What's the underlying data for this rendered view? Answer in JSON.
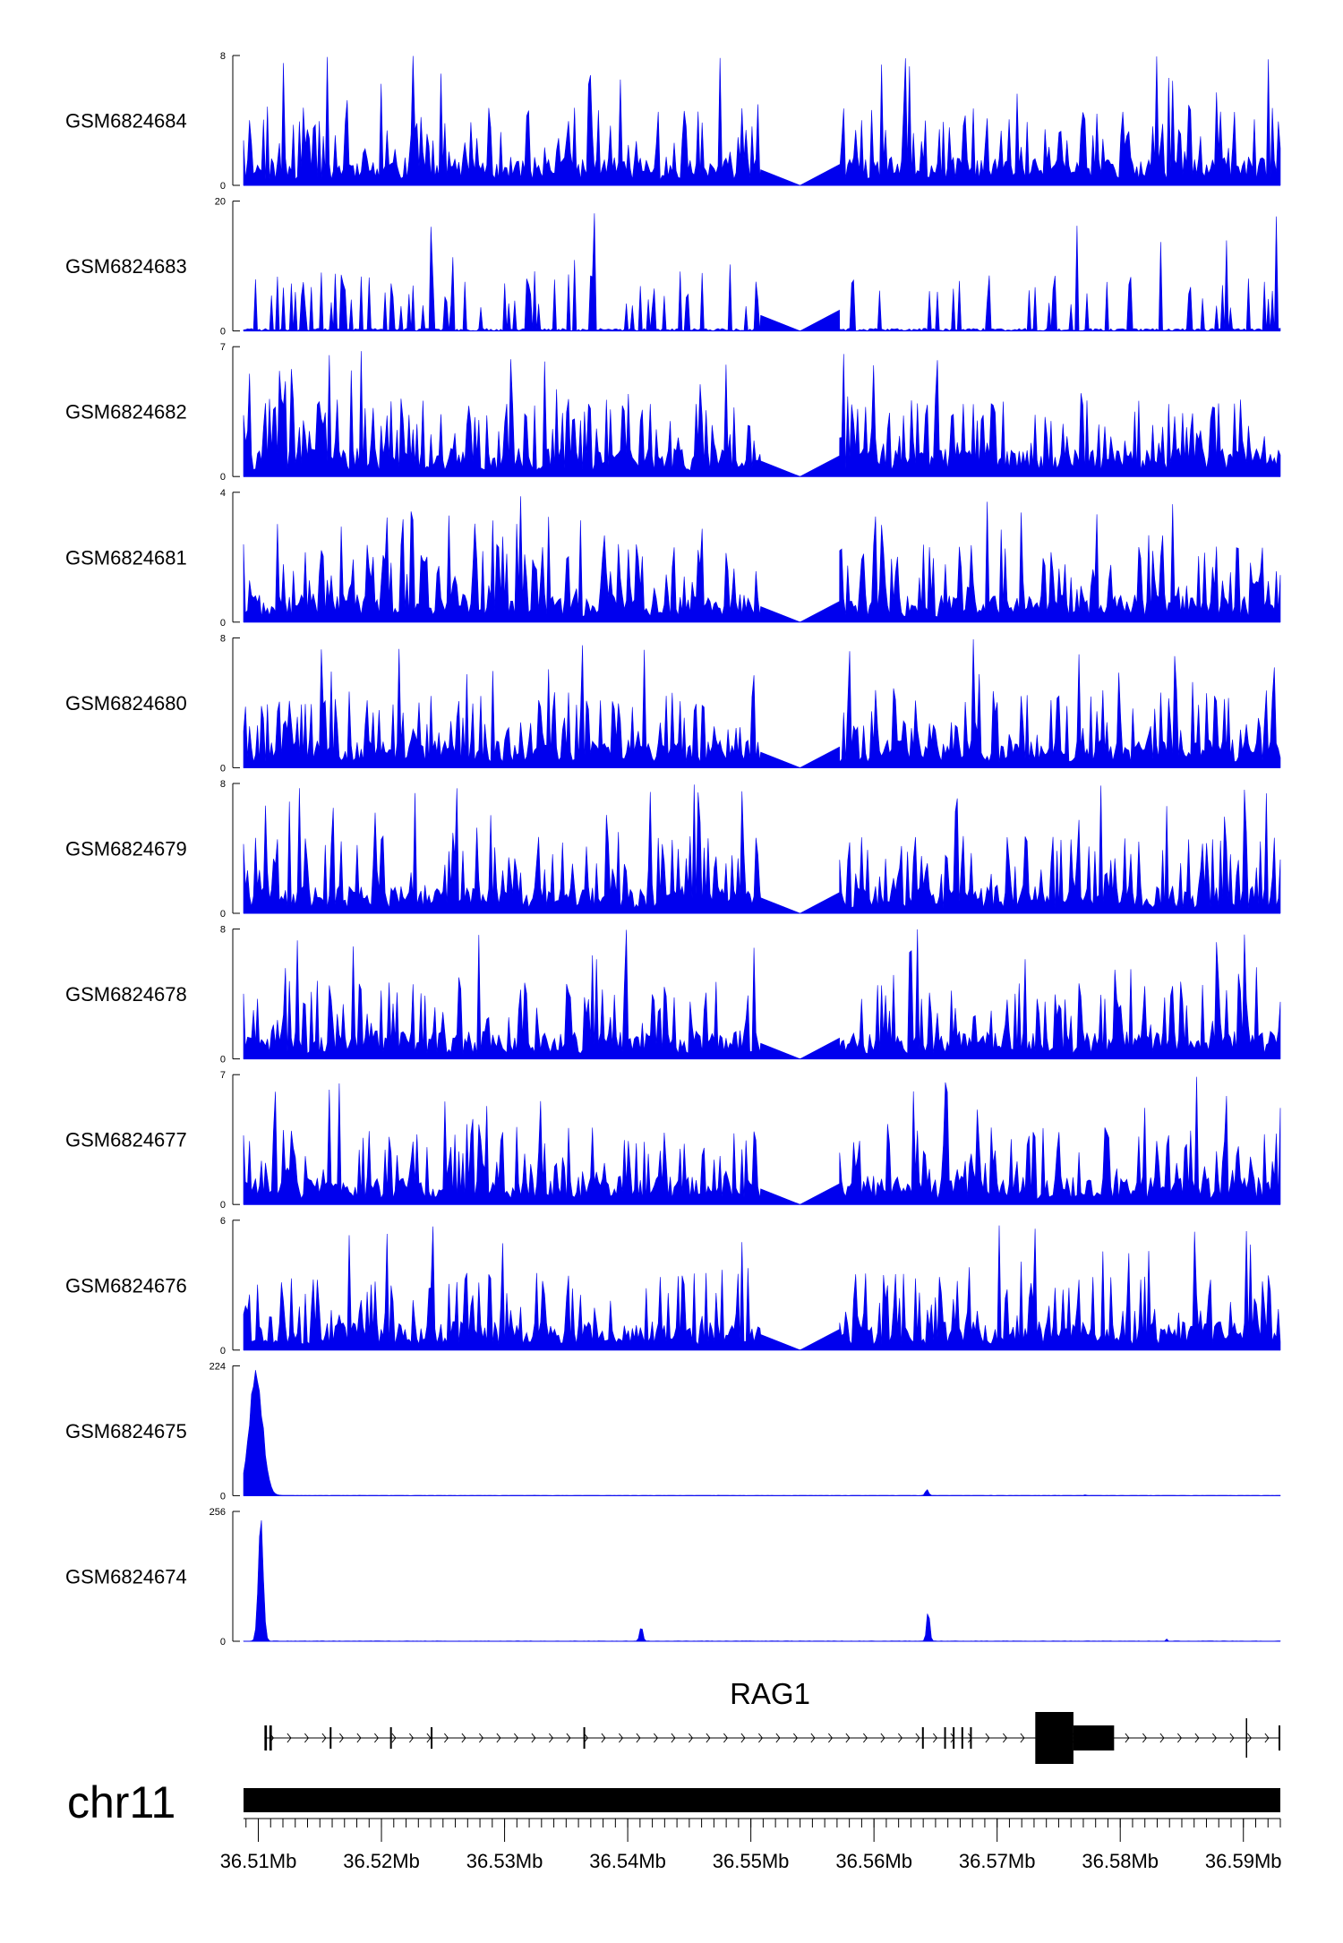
{
  "chart_data": {
    "type": "area",
    "chromosome": "chr11",
    "x_range_mb": [
      36.5088,
      36.593
    ],
    "gene": {
      "name": "RAG1",
      "start_mb": 36.5105,
      "end_mb": 36.593,
      "strand": "+",
      "exons_mb": [
        [
          36.5105,
          36.5107
        ],
        [
          36.5109,
          36.5111
        ],
        [
          36.5158,
          36.5159
        ],
        [
          36.5207,
          36.5208
        ],
        [
          36.524,
          36.5241
        ],
        [
          36.5364,
          36.5365
        ],
        [
          36.5639,
          36.564
        ],
        [
          36.5657,
          36.5658
        ],
        [
          36.5664,
          36.5665
        ],
        [
          36.5671,
          36.5672
        ],
        [
          36.5678,
          36.5679
        ]
      ],
      "cds_mb": [
        36.5731,
        36.5762
      ],
      "utr_mb": [
        36.5762,
        36.5795
      ],
      "tail_exon_mb": [
        36.5902,
        36.5903
      ]
    },
    "ticks": [
      "36.51Mb",
      "36.52Mb",
      "36.53Mb",
      "36.54Mb",
      "36.55Mb",
      "36.56Mb",
      "36.57Mb",
      "36.58Mb",
      "36.59Mb"
    ],
    "tick_values_mb": [
      36.51,
      36.52,
      36.53,
      36.54,
      36.55,
      36.56,
      36.57,
      36.58,
      36.59
    ],
    "gap_mb": [
      36.5508,
      36.5572
    ],
    "series_color": "#0000ee",
    "tracks": [
      {
        "name": "GSM6824684",
        "ymin": 0,
        "ymax": 8,
        "profile": "noise",
        "seed": 11,
        "mean": 0.22,
        "max": 8
      },
      {
        "name": "GSM6824683",
        "ymin": 0,
        "ymax": 20,
        "profile": "sparse",
        "seed": 23,
        "mean": 0.2,
        "max": 20
      },
      {
        "name": "GSM6824682",
        "ymin": 0,
        "ymax": 7,
        "profile": "noise",
        "seed": 37,
        "mean": 0.25,
        "max": 7
      },
      {
        "name": "GSM6824681",
        "ymin": 0,
        "ymax": 4,
        "profile": "noise",
        "seed": 41,
        "mean": 0.28,
        "max": 4
      },
      {
        "name": "GSM6824680",
        "ymin": 0,
        "ymax": 8,
        "profile": "noise",
        "seed": 53,
        "mean": 0.22,
        "max": 8
      },
      {
        "name": "GSM6824679",
        "ymin": 0,
        "ymax": 8,
        "profile": "noise",
        "seed": 61,
        "mean": 0.22,
        "max": 8
      },
      {
        "name": "GSM6824678",
        "ymin": 0,
        "ymax": 8,
        "profile": "noise",
        "seed": 71,
        "mean": 0.22,
        "max": 8
      },
      {
        "name": "GSM6824677",
        "ymin": 0,
        "ymax": 7,
        "profile": "noise",
        "seed": 83,
        "mean": 0.25,
        "max": 7
      },
      {
        "name": "GSM6824676",
        "ymin": 0,
        "ymax": 6,
        "profile": "noise",
        "seed": 97,
        "mean": 0.22,
        "max": 6
      },
      {
        "name": "GSM6824675",
        "ymin": 0,
        "ymax": 224,
        "profile": "peaks",
        "seed": 101,
        "peaks": [
          {
            "center_mb": 36.5098,
            "width_mb": 0.0011,
            "height": 220
          },
          {
            "center_mb": 36.5643,
            "width_mb": 0.00025,
            "height": 12
          },
          {
            "center_mb": 36.5772,
            "width_mb": 0.0001,
            "height": 3
          }
        ]
      },
      {
        "name": "GSM6824674",
        "ymin": 0,
        "ymax": 256,
        "profile": "peaks",
        "seed": 113,
        "peaks": [
          {
            "center_mb": 36.5102,
            "width_mb": 0.0004,
            "height": 250
          },
          {
            "center_mb": 36.5411,
            "width_mb": 0.00025,
            "height": 30
          },
          {
            "center_mb": 36.5644,
            "width_mb": 0.00025,
            "height": 65
          },
          {
            "center_mb": 36.5838,
            "width_mb": 0.0001,
            "height": 5
          }
        ]
      }
    ]
  }
}
